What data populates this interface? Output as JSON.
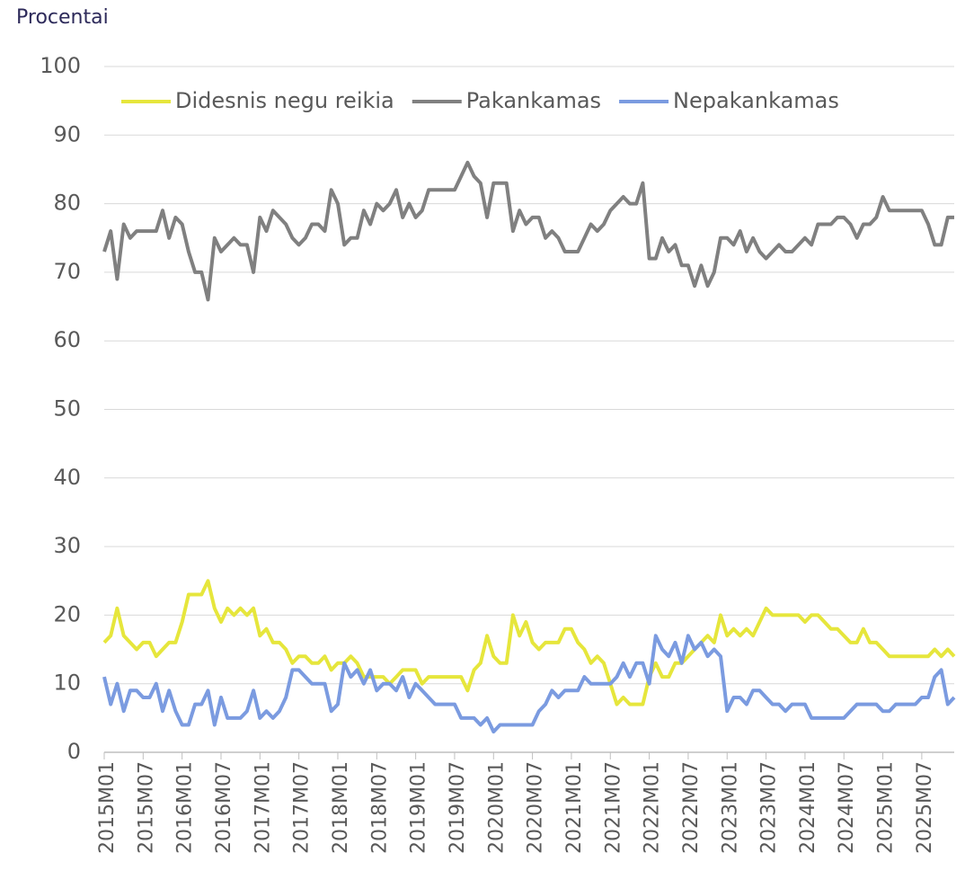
{
  "chart_data": {
    "type": "line",
    "ylabel": "Procentai",
    "categories": [
      "2015M01",
      null,
      null,
      null,
      null,
      null,
      "2015M07",
      null,
      null,
      null,
      null,
      null,
      "2016M01",
      null,
      null,
      null,
      null,
      null,
      "2016M07",
      null,
      null,
      null,
      null,
      null,
      "2017M01",
      null,
      null,
      null,
      null,
      null,
      "2017M07",
      null,
      null,
      null,
      null,
      null,
      "2018M01",
      null,
      null,
      null,
      null,
      null,
      "2018M07",
      null,
      null,
      null,
      null,
      null,
      "2019M01",
      null,
      null,
      null,
      null,
      null,
      "2019M07",
      null,
      null,
      null,
      null,
      null,
      "2020M01",
      null,
      null,
      null,
      null,
      null,
      "2020M07",
      null,
      null,
      null,
      null,
      null,
      "2021M01",
      null,
      null,
      null,
      null,
      null,
      "2021M07",
      null,
      null,
      null,
      null,
      null,
      "2022M01",
      null,
      null,
      null,
      null,
      null,
      "2022M07",
      null,
      null,
      null,
      null,
      null,
      "2023M01",
      null,
      null,
      null,
      null,
      null,
      "2023M07",
      null,
      null,
      null,
      null,
      null,
      "2024M01",
      null,
      null,
      null,
      null,
      null,
      "2024M07",
      null,
      null,
      null,
      null,
      null,
      "2025M01",
      null,
      null,
      null,
      null,
      null,
      "2025M07",
      null,
      null,
      null,
      null,
      null
    ],
    "series": [
      {
        "name": "Didesnis negu reikia",
        "color": "#e6e63c",
        "values": [
          16,
          17,
          21,
          17,
          16,
          15,
          16,
          16,
          14,
          15,
          16,
          16,
          19,
          23,
          23,
          23,
          25,
          21,
          19,
          21,
          20,
          21,
          20,
          21,
          17,
          18,
          16,
          16,
          15,
          13,
          14,
          14,
          13,
          13,
          14,
          12,
          13,
          13,
          14,
          13,
          11,
          11,
          11,
          11,
          10,
          11,
          12,
          12,
          12,
          10,
          11,
          11,
          11,
          11,
          11,
          11,
          9,
          12,
          13,
          17,
          14,
          13,
          13,
          20,
          17,
          19,
          16,
          15,
          16,
          16,
          16,
          18,
          18,
          16,
          15,
          13,
          14,
          13,
          10,
          7,
          8,
          7,
          7,
          7,
          11,
          13,
          11,
          11,
          13,
          13,
          14,
          15,
          16,
          17,
          16,
          20,
          17,
          18,
          17,
          18,
          17,
          19,
          21,
          20,
          20,
          20,
          20,
          20,
          19,
          20,
          20,
          19,
          18,
          18,
          17,
          16,
          16,
          18,
          16,
          16,
          15,
          14,
          14,
          14,
          14,
          14,
          14,
          14,
          15,
          14,
          15,
          14
        ]
      },
      {
        "name": "Pakankamas",
        "color": "#808080",
        "values": [
          73,
          76,
          69,
          77,
          75,
          76,
          76,
          76,
          76,
          79,
          75,
          78,
          77,
          73,
          70,
          70,
          66,
          75,
          73,
          74,
          75,
          74,
          74,
          70,
          78,
          76,
          79,
          78,
          77,
          75,
          74,
          75,
          77,
          77,
          76,
          82,
          80,
          74,
          75,
          75,
          79,
          77,
          80,
          79,
          80,
          82,
          78,
          80,
          78,
          79,
          82,
          82,
          82,
          82,
          82,
          84,
          86,
          84,
          83,
          78,
          83,
          83,
          83,
          76,
          79,
          77,
          78,
          78,
          75,
          76,
          75,
          73,
          73,
          73,
          75,
          77,
          76,
          77,
          79,
          80,
          81,
          80,
          80,
          83,
          72,
          72,
          75,
          73,
          74,
          71,
          71,
          68,
          71,
          68,
          70,
          75,
          75,
          74,
          76,
          73,
          75,
          73,
          72,
          73,
          74,
          73,
          73,
          74,
          75,
          74,
          77,
          77,
          77,
          78,
          78,
          77,
          75,
          77,
          77,
          78,
          81,
          79,
          79,
          79,
          79,
          79,
          79,
          77,
          74,
          74,
          78,
          78
        ]
      },
      {
        "name": "Nepakankamas",
        "color": "#7b9be0",
        "values": [
          11,
          7,
          10,
          6,
          9,
          9,
          8,
          8,
          10,
          6,
          9,
          6,
          4,
          4,
          7,
          7,
          9,
          4,
          8,
          5,
          5,
          5,
          6,
          9,
          5,
          6,
          5,
          6,
          8,
          12,
          12,
          11,
          10,
          10,
          10,
          6,
          7,
          13,
          11,
          12,
          10,
          12,
          9,
          10,
          10,
          9,
          11,
          8,
          10,
          9,
          8,
          7,
          7,
          7,
          7,
          5,
          5,
          5,
          4,
          5,
          3,
          4,
          4,
          4,
          4,
          4,
          4,
          6,
          7,
          9,
          8,
          9,
          9,
          9,
          11,
          10,
          10,
          10,
          10,
          11,
          13,
          11,
          13,
          13,
          10,
          17,
          15,
          14,
          16,
          13,
          17,
          15,
          16,
          14,
          15,
          14,
          6,
          8,
          8,
          7,
          9,
          9,
          8,
          7,
          7,
          6,
          7,
          7,
          7,
          5,
          5,
          5,
          5,
          5,
          5,
          6,
          7,
          7,
          7,
          7,
          6,
          6,
          7,
          7,
          7,
          7,
          8,
          8,
          11,
          12,
          7,
          8
        ]
      }
    ],
    "ylim": [
      0,
      100
    ],
    "yticks": [
      0,
      10,
      20,
      30,
      40,
      50,
      60,
      70,
      80,
      90,
      100
    ],
    "grid": true,
    "legend": "top"
  }
}
